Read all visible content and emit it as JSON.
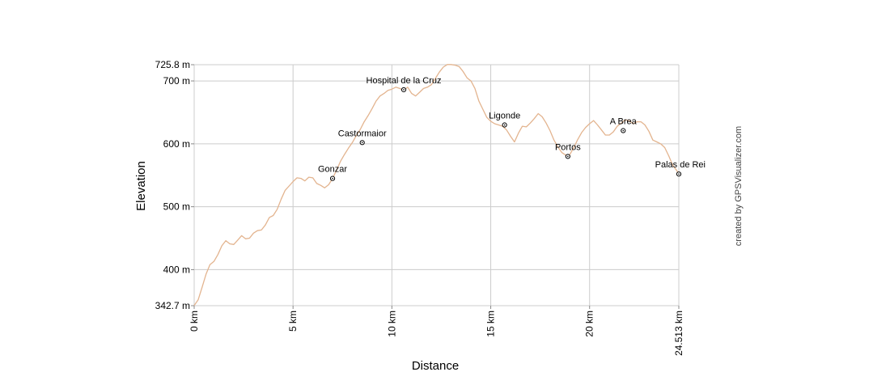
{
  "chart_data": {
    "type": "line",
    "xlabel": "Distance",
    "ylabel": "Elevation",
    "credit": "created by GPSVisualizer.com",
    "xlim": [
      0,
      24.513
    ],
    "ylim": [
      342.7,
      725.8
    ],
    "grid": true,
    "line_color": "#e3b48f",
    "grid_color": "#cccccc",
    "x_ticks": [
      {
        "value": 0,
        "label": "0 km"
      },
      {
        "value": 5,
        "label": "5 km"
      },
      {
        "value": 10,
        "label": "10 km"
      },
      {
        "value": 15,
        "label": "15 km"
      },
      {
        "value": 20,
        "label": "20 km"
      },
      {
        "value": 24.513,
        "label": "24.513 km"
      }
    ],
    "y_ticks": [
      {
        "value": 342.7,
        "label": "342.7 m"
      },
      {
        "value": 400,
        "label": "400 m"
      },
      {
        "value": 500,
        "label": "500 m"
      },
      {
        "value": 600,
        "label": "600 m"
      },
      {
        "value": 700,
        "label": "700 m"
      },
      {
        "value": 725.8,
        "label": "725.8 m"
      }
    ],
    "series": [
      {
        "x": [
          0,
          0.2,
          0.4,
          0.6,
          0.8,
          1.0,
          1.2,
          1.4,
          1.6,
          1.8,
          2.0,
          2.2,
          2.4,
          2.6,
          2.8,
          3.0,
          3.2,
          3.4,
          3.6,
          3.8,
          4.0,
          4.2,
          4.4,
          4.6,
          4.8,
          5.0,
          5.2,
          5.4,
          5.6,
          5.8,
          6.0,
          6.2,
          6.4,
          6.6,
          6.8,
          7.0,
          7.2,
          7.4,
          7.6,
          7.8,
          8.0,
          8.2,
          8.4,
          8.6,
          8.8,
          9.0,
          9.2,
          9.4,
          9.6,
          9.8,
          10.0,
          10.2,
          10.4,
          10.6,
          10.8,
          11.0,
          11.2,
          11.4,
          11.6,
          11.8,
          12.0,
          12.2,
          12.4,
          12.6,
          12.8,
          13.0,
          13.2,
          13.4,
          13.6,
          13.8,
          14.0,
          14.2,
          14.4,
          14.6,
          14.8,
          15.0,
          15.2,
          15.4,
          15.6,
          15.8,
          16.0,
          16.2,
          16.4,
          16.6,
          16.8,
          17.0,
          17.2,
          17.4,
          17.6,
          17.8,
          18.0,
          18.2,
          18.4,
          18.6,
          18.8,
          19.0,
          19.2,
          19.4,
          19.6,
          19.8,
          20.0,
          20.2,
          20.4,
          20.6,
          20.8,
          21.0,
          21.2,
          21.4,
          21.6,
          21.8,
          22.0,
          22.2,
          22.4,
          22.6,
          22.8,
          23.0,
          23.2,
          23.4,
          23.6,
          23.8,
          24.0,
          24.2,
          24.4,
          24.513
        ],
        "y": [
          343,
          352,
          372,
          393,
          408,
          413,
          424,
          438,
          446,
          441,
          440,
          447,
          454,
          449,
          450,
          458,
          462,
          463,
          471,
          483,
          486,
          496,
          512,
          526,
          533,
          540,
          546,
          545,
          541,
          547,
          546,
          537,
          534,
          530,
          535,
          545,
          558,
          572,
          583,
          593,
          602,
          613,
          623,
          635,
          645,
          656,
          668,
          676,
          680,
          685,
          687,
          690,
          688,
          685,
          690,
          680,
          676,
          682,
          688,
          690,
          694,
          704,
          714,
          722,
          726,
          726,
          725,
          723,
          715,
          705,
          700,
          688,
          668,
          655,
          642,
          636,
          632,
          630,
          628,
          622,
          612,
          603,
          617,
          628,
          627,
          633,
          640,
          648,
          643,
          633,
          621,
          606,
          595,
          586,
          582,
          583,
          594,
          607,
          618,
          626,
          632,
          637,
          630,
          622,
          614,
          614,
          619,
          628,
          633,
          638,
          637,
          632,
          635,
          635,
          630,
          620,
          606,
          603,
          600,
          594,
          581,
          566,
          558,
          552
        ]
      }
    ],
    "waypoints": [
      {
        "label": "Gonzar",
        "x": 7.0,
        "y": 545
      },
      {
        "label": "Castormaior",
        "x": 8.5,
        "y": 602
      },
      {
        "label": "Hospital de la Cruz",
        "x": 10.6,
        "y": 686
      },
      {
        "label": "Ligonde",
        "x": 15.7,
        "y": 630
      },
      {
        "label": "Portos",
        "x": 18.9,
        "y": 580
      },
      {
        "label": "A Brea",
        "x": 21.7,
        "y": 621
      },
      {
        "label": "Palas de Rei",
        "x": 24.513,
        "y": 552
      }
    ]
  }
}
